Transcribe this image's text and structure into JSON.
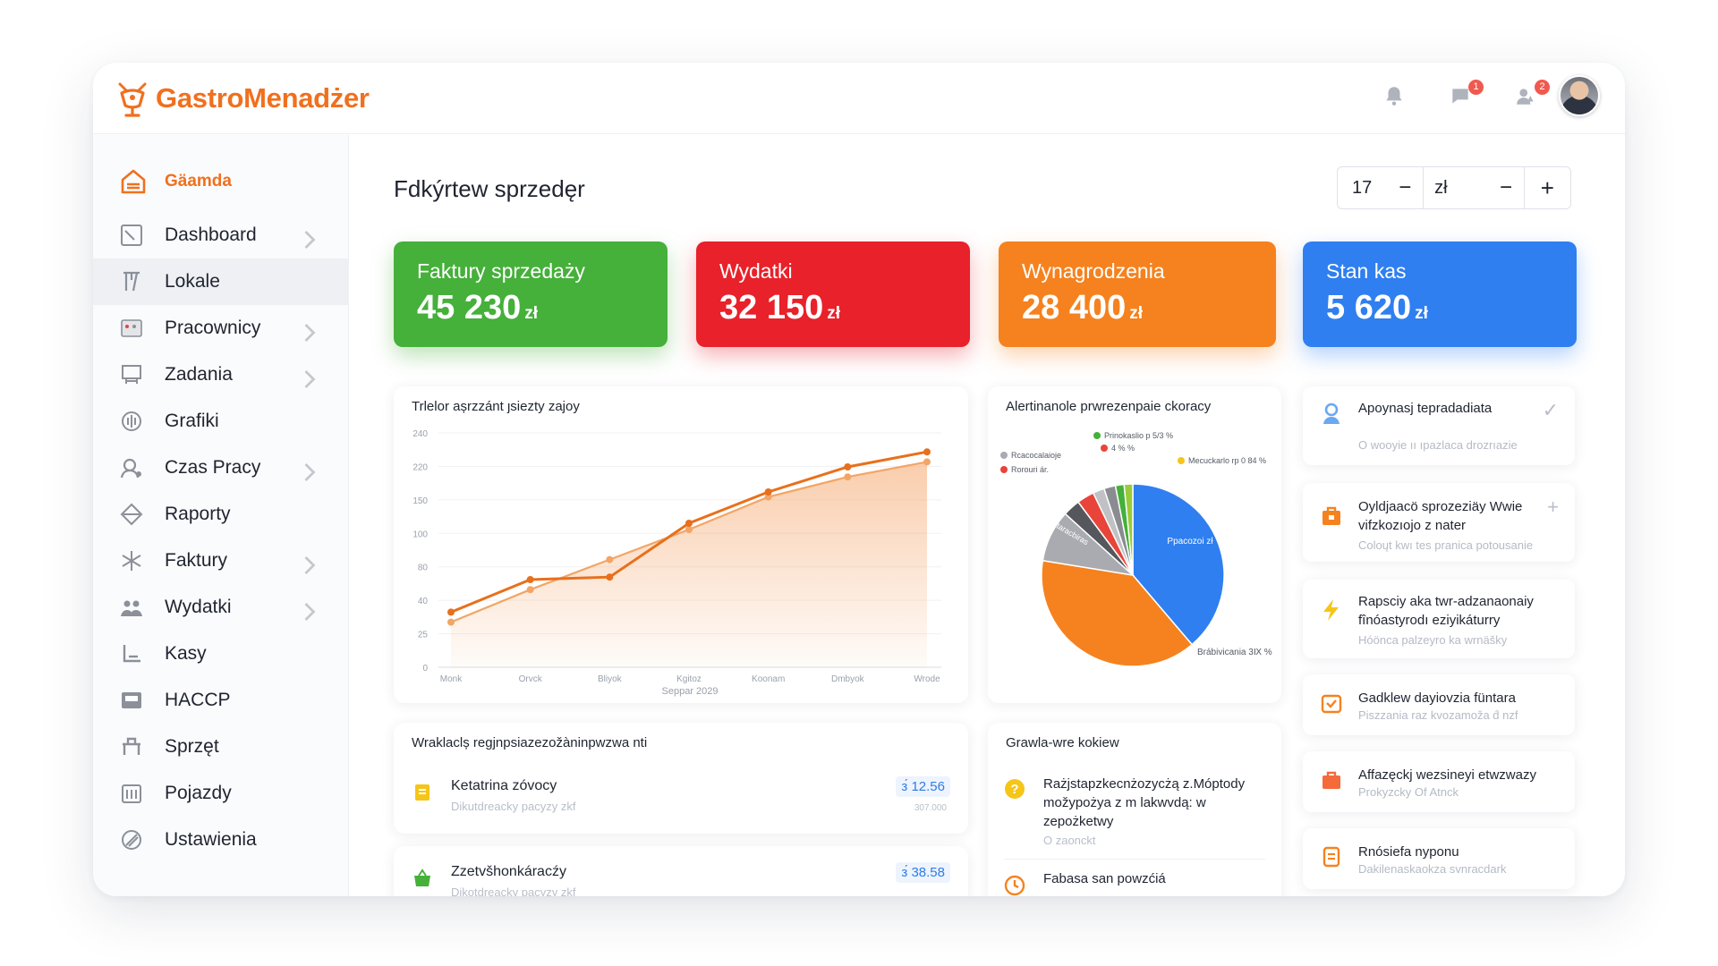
{
  "app": {
    "name": "GastroMenadżer"
  },
  "header": {
    "badges": {
      "messages": "1",
      "alerts": "2"
    }
  },
  "sidebar": {
    "brand_label": "Gäamda",
    "items": [
      {
        "label": "Dashboard",
        "icon": "dashboard-icon",
        "chevron": true
      },
      {
        "label": "Lokale",
        "icon": "restaurant-icon",
        "chevron": false,
        "active": true
      },
      {
        "label": "Pracownicy",
        "icon": "employees-icon",
        "chevron": true
      },
      {
        "label": "Zadania",
        "icon": "tasks-icon",
        "chevron": true
      },
      {
        "label": "Grafiki",
        "icon": "schedule-icon",
        "chevron": false
      },
      {
        "label": "Czas Pracy",
        "icon": "clock-icon",
        "chevron": true
      },
      {
        "label": "Raporty",
        "icon": "reports-icon",
        "chevron": false
      },
      {
        "label": "Faktury",
        "icon": "invoice-icon",
        "chevron": true
      },
      {
        "label": "Wydatki",
        "icon": "expenses-icon",
        "chevron": true
      },
      {
        "label": "Kasy",
        "icon": "cash-register-icon",
        "chevron": false
      },
      {
        "label": "HACCP",
        "icon": "haccp-icon",
        "chevron": false
      },
      {
        "label": "Sprzęt",
        "icon": "equipment-icon",
        "chevron": false
      },
      {
        "label": "Pojazdy",
        "icon": "vehicle-icon",
        "chevron": false
      },
      {
        "label": "Ustawienia",
        "icon": "settings-icon",
        "chevron": false
      }
    ]
  },
  "main": {
    "title": "Fdkýrtew sprzedęr",
    "stepper": {
      "value": "17",
      "minus": "−",
      "unit": "zł",
      "minus2": "−",
      "plus": "+"
    },
    "kpis": [
      {
        "label": "Faktury sprzedaży",
        "value": "45 230",
        "unit": "zł",
        "color": "#45b03a"
      },
      {
        "label": "Wydatki",
        "value": "32 150",
        "unit": "zł",
        "color": "#e8212a"
      },
      {
        "label": "Wynagrodzenia",
        "value": "28 400",
        "unit": "zł",
        "color": "#f5821e"
      },
      {
        "label": "Stan kas",
        "value": "5 620",
        "unit": "zł",
        "color": "#2f7ff0"
      }
    ],
    "line_card_title": "Trlelor așrzzánt ȷsiezty zajoy",
    "pie_card_title": "Alertinanole prwrezenpaie ckoracy",
    "expenses_card_title": "Wraklaclș regjnpsiazezožàninpwzwa nti",
    "expenses": [
      {
        "title": "Ketatrina zóvocy",
        "sub": "Dikutdreacky pacyzy zkf",
        "amount": "з́ 12.56",
        "meta": "307.000",
        "icon": "receipt-icon",
        "color": "#f5c518"
      },
      {
        "title": "Zzetvšhonkáracźy",
        "sub": "Dikotdreacky pacyzy zkf",
        "amount": "з́ 38.58",
        "meta": "",
        "icon": "basket-icon",
        "color": "#45b03a"
      }
    ],
    "tasks_card_title": "Grawla-wre kokiew",
    "tasks": [
      {
        "title": "Rażjstapzkecnżozycżą z.Móptody možypożya z m lakwvdą: w zepożketwy",
        "sub": "O zaonckt",
        "icon": "warning-icon"
      },
      {
        "title": "Fabasa san powzćiá",
        "sub": "",
        "icon": "clock-icon"
      }
    ],
    "notifications": [
      {
        "title": "Apoynasj tepradadiata",
        "sub": "O wooyie ıı ıpazlaca drozrıazie",
        "icon": "user-icon",
        "action": "✓"
      },
      {
        "title": "Oyldjaacö sprozeziäy Wwie vifzkozıojo z nater",
        "sub": "Coloųt kwı tes pranica potousanie",
        "icon": "bag-icon",
        "action": "+"
      },
      {
        "title": "Rapsciy aka twr-adzanaonaiy fînóastyrodı eziyikáturry",
        "sub": "Hóönca palzeyro ka wrnäšky",
        "icon": "bolt-icon",
        "action": ""
      },
      {
        "title": "Gadklew dayiovzia füntara",
        "sub": "Piszzania raz kvozamoža d́ nzf",
        "icon": "calendar-icon",
        "action": ""
      },
      {
        "title": "Affazęckj wezsineyi etwzwazy",
        "sub": "Prokyzcky Of Atnck",
        "icon": "briefcase-icon",
        "action": ""
      },
      {
        "title": "Rnósiefa nyponu",
        "sub": "Dakilenaskaokza svnracdark",
        "icon": "document-icon",
        "action": ""
      }
    ]
  },
  "chart_data": [
    {
      "type": "line",
      "title": "Trlelor așrzzánt ȷsiezty zajoy",
      "xlabel": "Seppar 2029",
      "ylabel": "",
      "categories": [
        "Monk",
        "Orvck",
        "Bliyok",
        "Kgitoz",
        "Koonam",
        "Dmbyok",
        "Wrode"
      ],
      "y_ticks": [
        "0",
        "25",
        "40",
        "80",
        "100",
        "150",
        "220",
        "240"
      ],
      "series": [
        {
          "x": [
            0,
            1,
            2,
            3,
            4,
            5,
            6
          ],
          "values": [
            44,
            70,
            72,
            115,
            140,
            160,
            172
          ],
          "color": "#e8701c"
        },
        {
          "x": [
            0,
            1,
            2,
            3,
            4,
            5,
            6
          ],
          "values": [
            36,
            62,
            86,
            110,
            136,
            152,
            164
          ],
          "color": "#f3a566"
        }
      ],
      "y_positions_note_ticks_are_ordinal": true,
      "grid": true
    },
    {
      "type": "pie",
      "title": "Alertinanole prwrezenpaie ckoracy",
      "slices": [
        {
          "label": "Ppacozoi zł",
          "value": 38,
          "color": "#2f7ff0"
        },
        {
          "label": "Brábivicania 3Ⅸ %",
          "value": 38,
          "color": "#f5821e"
        },
        {
          "label": "Rataracbiras",
          "value": 9,
          "color": "#a9abb0"
        },
        {
          "label": "",
          "value": 3,
          "color": "#55575c"
        },
        {
          "label": "",
          "value": 3,
          "color": "#e8443a"
        },
        {
          "label": "",
          "value": 2,
          "color": "#bfc1c5"
        },
        {
          "label": "",
          "value": 2,
          "color": "#8a8c91"
        },
        {
          "label": "",
          "value": 1.5,
          "color": "#45b03a"
        },
        {
          "label": "",
          "value": 1.5,
          "color": "#9acb3a"
        }
      ],
      "legend": [
        {
          "label": "Prinokaslio p 5/3 %",
          "color": "#45b03a"
        },
        {
          "label": "4 % %",
          "color": "#e8443a"
        },
        {
          "label": "Rcacocalaioje",
          "color": "#a9abb0"
        },
        {
          "label": "Rorouri а́r.",
          "color": "#e8443a"
        },
        {
          "label": "Mecuckarlo rp 0 84 %",
          "color": "#f5c518"
        }
      ]
    }
  ]
}
